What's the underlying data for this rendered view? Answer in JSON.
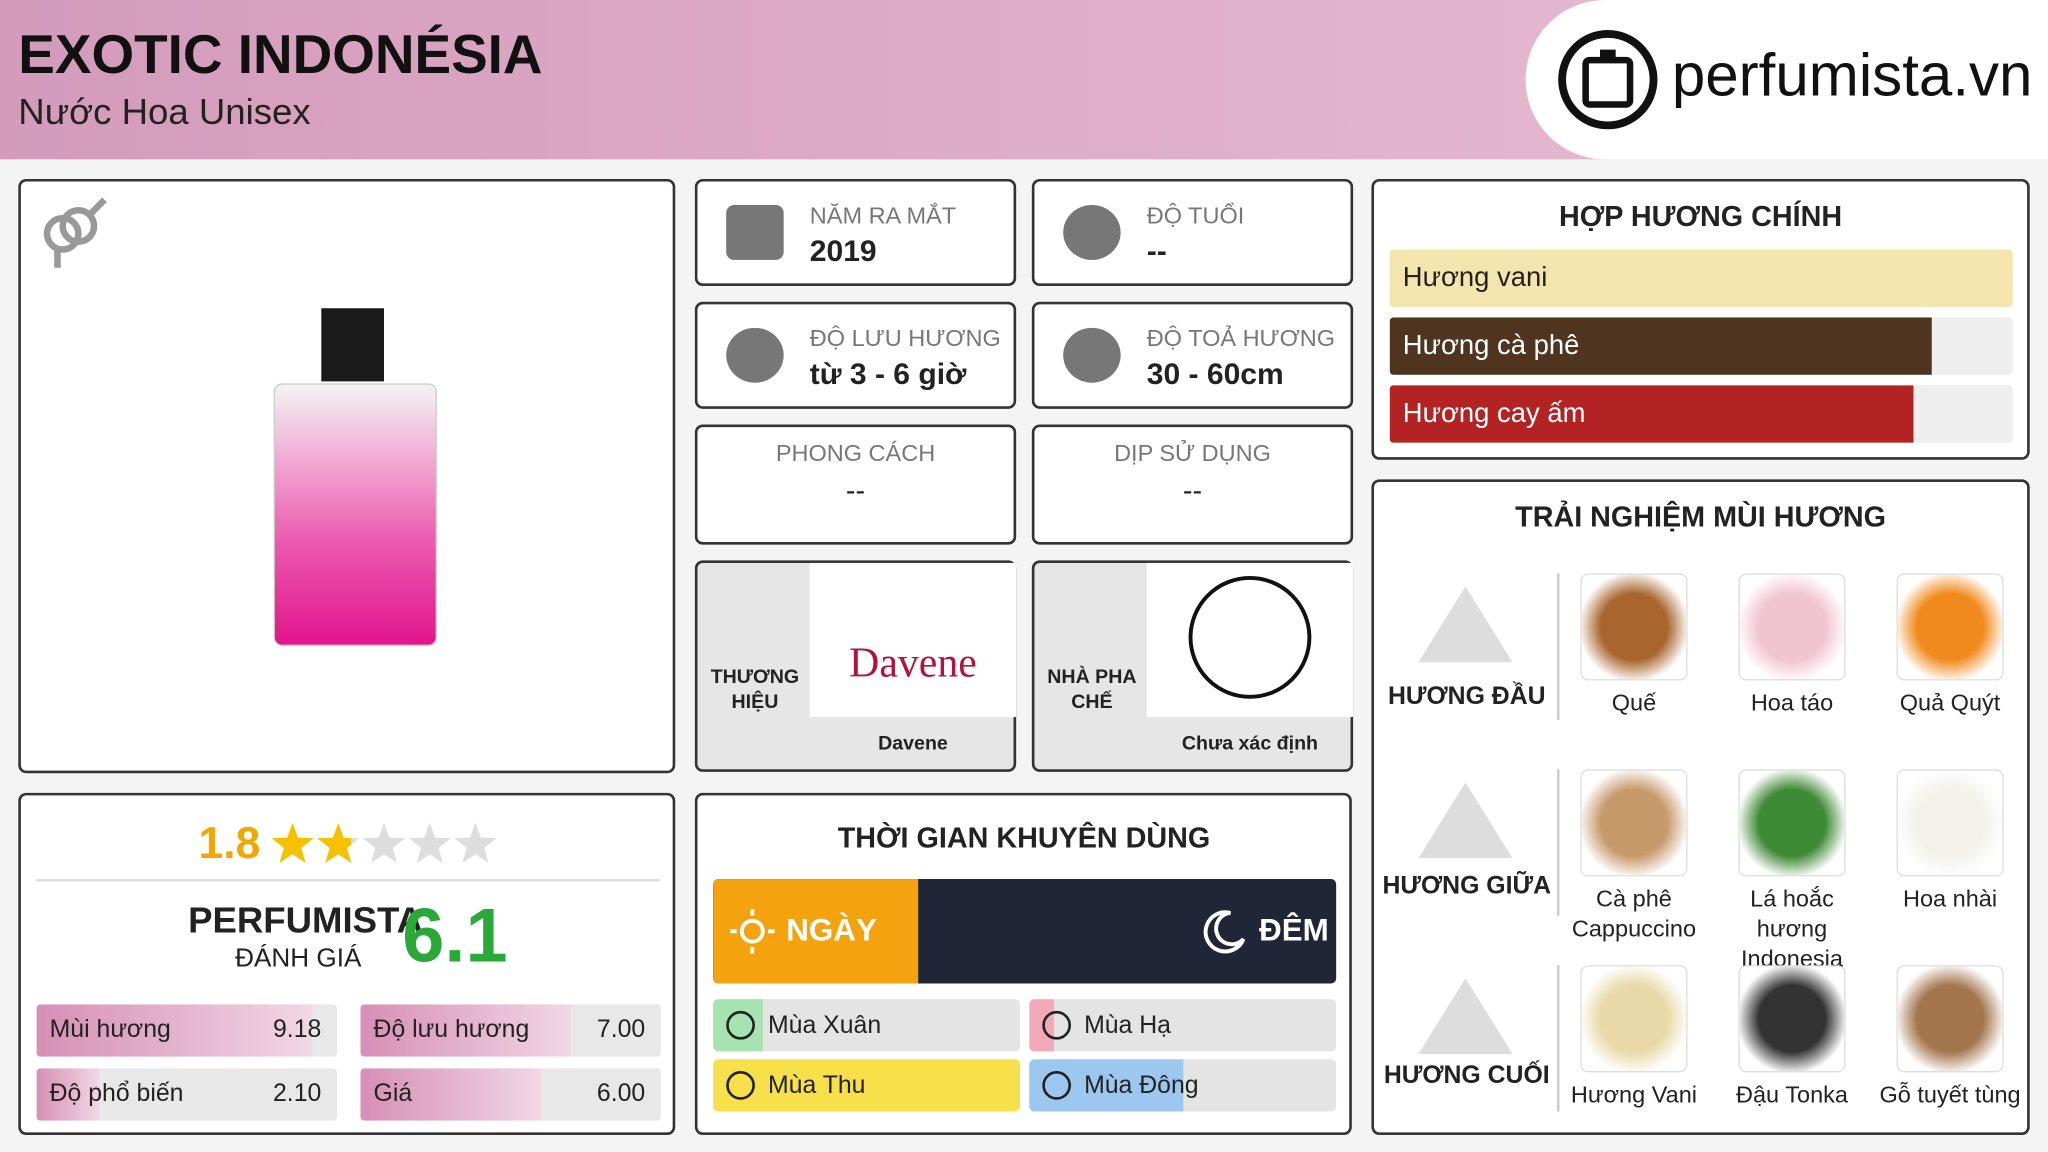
{
  "header": {
    "title": "EXOTIC INDONÉSIA",
    "subtitle": "Nước Hoa Unisex",
    "logo": "perfumista.vn"
  },
  "info": {
    "release": {
      "label": "NĂM RA MẮT",
      "value": "2019"
    },
    "age": {
      "label": "ĐỘ TUỔI",
      "value": "--"
    },
    "longevity": {
      "label": "ĐỘ LƯU HƯƠNG",
      "value": "từ 3 - 6 giờ"
    },
    "sillage": {
      "label": "ĐỘ TOẢ HƯƠNG",
      "value": "30 - 60cm"
    },
    "style": {
      "label": "PHONG CÁCH",
      "value": "--"
    },
    "occasion": {
      "label": "DỊP SỬ DỤNG",
      "value": "--"
    },
    "brand": {
      "label": "THƯƠNG HIỆU",
      "logo": "Davene",
      "name": "Davene"
    },
    "perfumer": {
      "label": "NHÀ PHA CHẾ",
      "name": "Chưa xác định"
    }
  },
  "rating": {
    "stars": 1.8,
    "brand": "PERFUMISTA",
    "caption": "ĐÁNH GIÁ",
    "score": 6.1,
    "bars": [
      {
        "label": "Mùi hương",
        "value": "9.18"
      },
      {
        "label": "Độ lưu hương",
        "value": "7.00"
      },
      {
        "label": "Độ phổ biến",
        "value": "2.10"
      },
      {
        "label": "Giá",
        "value": "6.00"
      }
    ]
  },
  "time": {
    "title": "THỜI GIAN KHUYÊN DÙNG",
    "day": {
      "label": "NGÀY",
      "share": 33
    },
    "night": {
      "label": "ĐÊM"
    },
    "seasons": [
      {
        "label": "Mùa Xuân",
        "level": 16,
        "color": "#a6e3b0"
      },
      {
        "label": "Mùa Hạ",
        "level": 8,
        "color": "#f4a9b8"
      },
      {
        "label": "Mùa Thu",
        "level": 100,
        "color": "#f8e04a"
      },
      {
        "label": "Mùa Đông",
        "level": 50,
        "color": "#9cc8f0"
      }
    ]
  },
  "accords": {
    "title": "HỢP HƯƠNG CHÍNH",
    "items": [
      {
        "label": "Hương vani",
        "strength": 100,
        "color": "#f3e5ad"
      },
      {
        "label": "Hương cà phê",
        "strength": 87,
        "color": "#4f3520"
      },
      {
        "label": "Hương cay ấm",
        "strength": 84,
        "color": "#b42323"
      }
    ]
  },
  "notes": {
    "title": "TRẢI NGHIỆM MÙI HƯƠNG",
    "tiers": [
      {
        "label": "HƯƠNG ĐẦU",
        "items": [
          "Quế",
          "Hoa táo",
          "Quả Quýt"
        ]
      },
      {
        "label": "HƯƠNG GIỮA",
        "items": [
          "Cà phê Cappuccino",
          "Lá hoắc hương Indonesia",
          "Hoa nhài"
        ]
      },
      {
        "label": "HƯƠNG CUỐI",
        "items": [
          "Hương Vani",
          "Đậu Tonka",
          "Gỗ tuyết tùng"
        ]
      }
    ]
  }
}
